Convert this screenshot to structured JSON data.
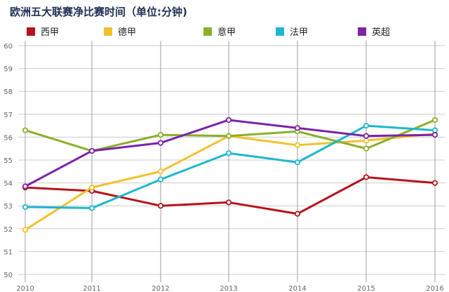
{
  "chart_data": {
    "type": "line",
    "title": "欧洲五大联赛净比赛时间（单位:分钟)",
    "x": [
      "2010",
      "2011",
      "2012",
      "2013",
      "2014",
      "2015",
      "2016"
    ],
    "yticks": [
      "50",
      "51",
      "52",
      "53",
      "54",
      "55",
      "56",
      "57",
      "58",
      "59",
      "60"
    ],
    "ylim": [
      50,
      60
    ],
    "grid": true,
    "legend_position": "top",
    "series": [
      {
        "name": "西甲",
        "color": "#b3151c",
        "values": [
          53.8,
          53.65,
          53.0,
          53.15,
          52.65,
          54.25,
          54.0
        ]
      },
      {
        "name": "德甲",
        "color": "#f2c12e",
        "values": [
          51.95,
          53.8,
          54.5,
          56.05,
          55.65,
          55.85,
          56.15
        ]
      },
      {
        "name": "意甲",
        "color": "#8ab02a",
        "values": [
          56.3,
          55.4,
          56.1,
          56.05,
          56.25,
          55.5,
          56.75
        ]
      },
      {
        "name": "法甲",
        "color": "#1fb6cf",
        "values": [
          52.95,
          52.9,
          54.15,
          55.3,
          54.9,
          56.5,
          56.3
        ]
      },
      {
        "name": "英超",
        "color": "#7c23a6",
        "values": [
          53.85,
          55.4,
          55.75,
          56.75,
          56.4,
          56.05,
          56.1
        ]
      }
    ]
  }
}
